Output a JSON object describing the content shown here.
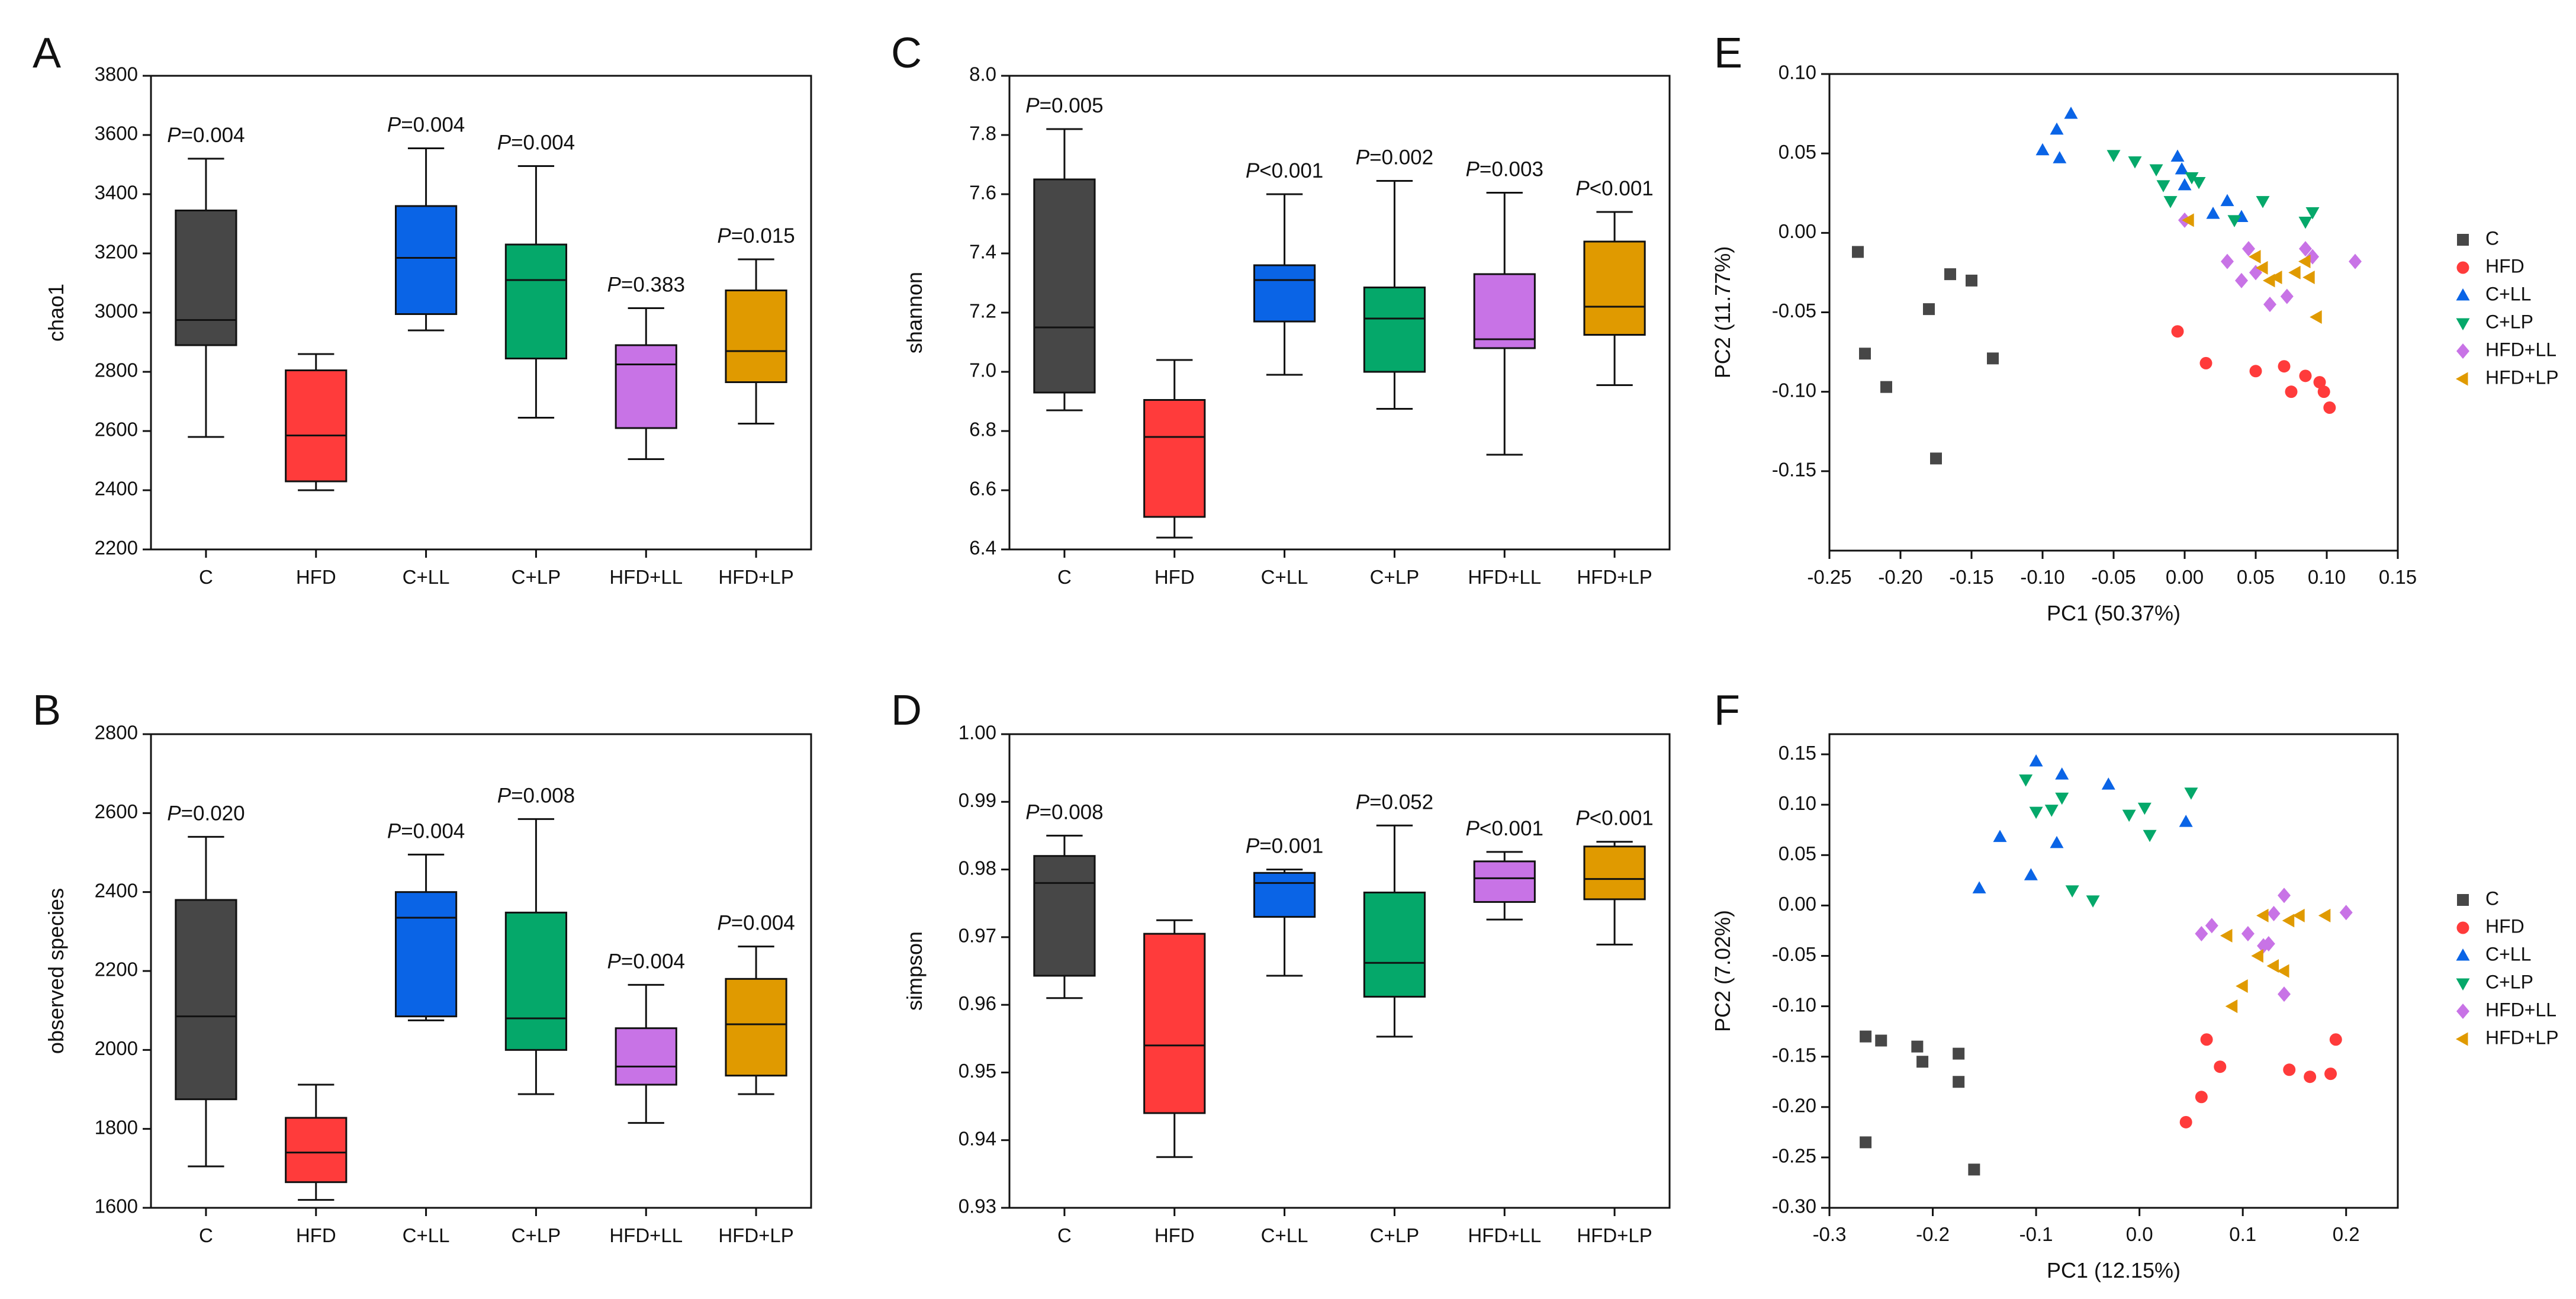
{
  "colors": {
    "C": "#474747",
    "HFD": "#ff3b3b",
    "C+LL": "#0a64e6",
    "C+LP": "#05a86a",
    "HFD+LL": "#c873e6",
    "HFD+LP": "#e09a00"
  },
  "chart_data": [
    {
      "panel": "A",
      "type": "box",
      "ylabel": "chao1",
      "ylim": [
        2200,
        3800
      ],
      "yticks": [
        "2200",
        "2400",
        "2600",
        "2800",
        "3000",
        "3200",
        "3400",
        "3600",
        "3800"
      ],
      "categories": [
        "C",
        "HFD",
        "C+LL",
        "C+LP",
        "HFD+LL",
        "HFD+LP"
      ],
      "boxes": [
        {
          "group": "C",
          "min": 2580,
          "q1": 2890,
          "median": 2975,
          "q3": 3345,
          "max": 3520,
          "pprefix": "P",
          "ptext": "=0.004"
        },
        {
          "group": "HFD",
          "min": 2400,
          "q1": 2430,
          "median": 2585,
          "q3": 2805,
          "max": 2860,
          "pprefix": "",
          "ptext": ""
        },
        {
          "group": "C+LL",
          "min": 2940,
          "q1": 2995,
          "median": 3185,
          "q3": 3360,
          "max": 3555,
          "pprefix": "P",
          "ptext": "=0.004"
        },
        {
          "group": "C+LP",
          "min": 2645,
          "q1": 2845,
          "median": 3110,
          "q3": 3230,
          "max": 3495,
          "pprefix": "P",
          "ptext": "=0.004"
        },
        {
          "group": "HFD+LL",
          "min": 2505,
          "q1": 2610,
          "median": 2825,
          "q3": 2890,
          "max": 3015,
          "pprefix": "P",
          "ptext": "=0.383"
        },
        {
          "group": "HFD+LP",
          "min": 2625,
          "q1": 2765,
          "median": 2870,
          "q3": 3075,
          "max": 3180,
          "pprefix": "P",
          "ptext": "=0.015"
        }
      ]
    },
    {
      "panel": "B",
      "type": "box",
      "ylabel": "observed species",
      "ylim": [
        1600,
        2800
      ],
      "yticks": [
        "1600",
        "1800",
        "2000",
        "2200",
        "2400",
        "2600",
        "2800"
      ],
      "categories": [
        "C",
        "HFD",
        "C+LL",
        "C+LP",
        "HFD+LL",
        "HFD+LP"
      ],
      "boxes": [
        {
          "group": "C",
          "min": 1705,
          "q1": 1875,
          "median": 2085,
          "q3": 2380,
          "max": 2540,
          "pprefix": "P",
          "ptext": "=0.020"
        },
        {
          "group": "HFD",
          "min": 1620,
          "q1": 1665,
          "median": 1740,
          "q3": 1828,
          "max": 1912,
          "pprefix": "",
          "ptext": ""
        },
        {
          "group": "C+LL",
          "min": 2075,
          "q1": 2085,
          "median": 2335,
          "q3": 2400,
          "max": 2495,
          "pprefix": "P",
          "ptext": "=0.004"
        },
        {
          "group": "C+LP",
          "min": 1888,
          "q1": 2000,
          "median": 2080,
          "q3": 2348,
          "max": 2585,
          "pprefix": "P",
          "ptext": "=0.008"
        },
        {
          "group": "HFD+LL",
          "min": 1815,
          "q1": 1912,
          "median": 1958,
          "q3": 2055,
          "max": 2165,
          "pprefix": "P",
          "ptext": "=0.004"
        },
        {
          "group": "HFD+LP",
          "min": 1888,
          "q1": 1935,
          "median": 2065,
          "q3": 2180,
          "max": 2262,
          "pprefix": "P",
          "ptext": "=0.004"
        }
      ]
    },
    {
      "panel": "C",
      "type": "box",
      "ylabel": "shannon",
      "ylim": [
        6.4,
        8.0
      ],
      "yticks": [
        "6.4",
        "6.6",
        "6.8",
        "7.0",
        "7.2",
        "7.4",
        "7.6",
        "7.8",
        "8.0"
      ],
      "categories": [
        "C",
        "HFD",
        "C+LL",
        "C+LP",
        "HFD+LL",
        "HFD+LP"
      ],
      "boxes": [
        {
          "group": "C",
          "min": 6.87,
          "q1": 6.93,
          "median": 7.15,
          "q3": 7.65,
          "max": 7.82,
          "pprefix": "P",
          "ptext": "=0.005"
        },
        {
          "group": "HFD",
          "min": 6.44,
          "q1": 6.51,
          "median": 6.78,
          "q3": 6.905,
          "max": 7.04,
          "pprefix": "",
          "ptext": ""
        },
        {
          "group": "C+LL",
          "min": 6.99,
          "q1": 7.17,
          "median": 7.31,
          "q3": 7.36,
          "max": 7.6,
          "pprefix": "P",
          "ptext": "<0.001"
        },
        {
          "group": "C+LP",
          "min": 6.875,
          "q1": 7.0,
          "median": 7.18,
          "q3": 7.285,
          "max": 7.645,
          "pprefix": "P",
          "ptext": "=0.002"
        },
        {
          "group": "HFD+LL",
          "min": 6.72,
          "q1": 7.08,
          "median": 7.11,
          "q3": 7.33,
          "max": 7.605,
          "pprefix": "P",
          "ptext": "=0.003"
        },
        {
          "group": "HFD+LP",
          "min": 6.955,
          "q1": 7.125,
          "median": 7.22,
          "q3": 7.44,
          "max": 7.54,
          "pprefix": "P",
          "ptext": "<0.001"
        }
      ]
    },
    {
      "panel": "D",
      "type": "box",
      "ylabel": "simpson",
      "ylim": [
        0.93,
        1.0
      ],
      "yticks": [
        "0.93",
        "0.94",
        "0.95",
        "0.96",
        "0.97",
        "0.98",
        "0.99",
        "1.00"
      ],
      "categories": [
        "C",
        "HFD",
        "C+LL",
        "C+LP",
        "HFD+LL",
        "HFD+LP"
      ],
      "boxes": [
        {
          "group": "C",
          "min": 0.961,
          "q1": 0.9643,
          "median": 0.978,
          "q3": 0.982,
          "max": 0.985,
          "pprefix": "P",
          "ptext": "=0.008"
        },
        {
          "group": "HFD",
          "min": 0.9375,
          "q1": 0.944,
          "median": 0.954,
          "q3": 0.9705,
          "max": 0.9725,
          "pprefix": "",
          "ptext": ""
        },
        {
          "group": "C+LL",
          "min": 0.9643,
          "q1": 0.973,
          "median": 0.978,
          "q3": 0.9795,
          "max": 0.98,
          "pprefix": "P",
          "ptext": "=0.001"
        },
        {
          "group": "C+LP",
          "min": 0.9553,
          "q1": 0.9612,
          "median": 0.9662,
          "q3": 0.9766,
          "max": 0.9865,
          "pprefix": "P",
          "ptext": "=0.052"
        },
        {
          "group": "HFD+LL",
          "min": 0.9726,
          "q1": 0.9752,
          "median": 0.9787,
          "q3": 0.9812,
          "max": 0.9826,
          "pprefix": "P",
          "ptext": "<0.001"
        },
        {
          "group": "HFD+LP",
          "min": 0.9689,
          "q1": 0.9756,
          "median": 0.9786,
          "q3": 0.9834,
          "max": 0.9841,
          "pprefix": "P",
          "ptext": "<0.001"
        }
      ]
    },
    {
      "panel": "E",
      "type": "scatter",
      "xlabel": "PC1 (50.37%)",
      "ylabel": "PC2 (11.77%)",
      "xlim": [
        -0.25,
        0.15
      ],
      "ylim": [
        -0.2,
        0.1
      ],
      "xticks": [
        "-0.25",
        "-0.20",
        "-0.15",
        "-0.10",
        "-0.05",
        "0.00",
        "0.05",
        "0.10",
        "0.15"
      ],
      "yticks": [
        "-0.15",
        "-0.10",
        "-0.05",
        "0.00",
        "0.05",
        "0.10"
      ],
      "legend": "right",
      "series": [
        {
          "name": "C",
          "marker": "square",
          "points": [
            [
              -0.23,
              -0.012
            ],
            [
              -0.225,
              -0.076
            ],
            [
              -0.21,
              -0.097
            ],
            [
              -0.18,
              -0.048
            ],
            [
              -0.175,
              -0.142
            ],
            [
              -0.165,
              -0.026
            ],
            [
              -0.15,
              -0.03
            ],
            [
              -0.135,
              -0.079
            ]
          ]
        },
        {
          "name": "HFD",
          "marker": "circle",
          "points": [
            [
              -0.005,
              -0.062
            ],
            [
              0.015,
              -0.082
            ],
            [
              0.05,
              -0.087
            ],
            [
              0.07,
              -0.084
            ],
            [
              0.075,
              -0.1
            ],
            [
              0.085,
              -0.09
            ],
            [
              0.095,
              -0.094
            ],
            [
              0.098,
              -0.1
            ],
            [
              0.102,
              -0.11
            ]
          ]
        },
        {
          "name": "C+LL",
          "marker": "triangle-up",
          "points": [
            [
              -0.1,
              0.052
            ],
            [
              -0.09,
              0.065
            ],
            [
              -0.088,
              0.047
            ],
            [
              -0.08,
              0.075
            ],
            [
              -0.005,
              0.048
            ],
            [
              -0.002,
              0.04
            ],
            [
              0.0,
              0.03
            ],
            [
              0.02,
              0.012
            ],
            [
              0.03,
              0.02
            ],
            [
              0.04,
              0.01
            ]
          ]
        },
        {
          "name": "C+LP",
          "marker": "triangle-down",
          "points": [
            [
              -0.05,
              0.049
            ],
            [
              -0.035,
              0.045
            ],
            [
              -0.02,
              0.04
            ],
            [
              -0.015,
              0.03
            ],
            [
              -0.01,
              0.02
            ],
            [
              0.005,
              0.035
            ],
            [
              0.01,
              0.032
            ],
            [
              0.035,
              0.008
            ],
            [
              0.055,
              0.02
            ],
            [
              0.09,
              0.013
            ],
            [
              0.085,
              0.007
            ]
          ]
        },
        {
          "name": "HFD+LL",
          "marker": "diamond",
          "points": [
            [
              0.0,
              0.008
            ],
            [
              0.03,
              -0.018
            ],
            [
              0.045,
              -0.01
            ],
            [
              0.04,
              -0.03
            ],
            [
              0.05,
              -0.025
            ],
            [
              0.06,
              -0.045
            ],
            [
              0.072,
              -0.04
            ],
            [
              0.085,
              -0.01
            ],
            [
              0.09,
              -0.015
            ],
            [
              0.12,
              -0.018
            ]
          ]
        },
        {
          "name": "HFD+LP",
          "marker": "triangle-left",
          "points": [
            [
              0.003,
              0.008
            ],
            [
              0.05,
              -0.015
            ],
            [
              0.055,
              -0.022
            ],
            [
              0.06,
              -0.03
            ],
            [
              0.065,
              -0.028
            ],
            [
              0.078,
              -0.025
            ],
            [
              0.085,
              -0.018
            ],
            [
              0.088,
              -0.028
            ],
            [
              0.093,
              -0.053
            ]
          ]
        }
      ]
    },
    {
      "panel": "F",
      "type": "scatter",
      "xlabel": "PC1 (12.15%)",
      "ylabel": "PC2 (7.02%)",
      "xlim": [
        -0.3,
        0.25
      ],
      "ylim": [
        -0.3,
        0.17
      ],
      "xticks": [
        "-0.3",
        "-0.2",
        "-0.1",
        "0.0",
        "0.1",
        "0.2"
      ],
      "yticks": [
        "-0.30",
        "-0.25",
        "-0.20",
        "-0.15",
        "-0.10",
        "-0.05",
        "0.00",
        "0.05",
        "0.10",
        "0.15"
      ],
      "legend": "right",
      "series": [
        {
          "name": "C",
          "marker": "square",
          "points": [
            [
              -0.265,
              -0.13
            ],
            [
              -0.265,
              -0.235
            ],
            [
              -0.25,
              -0.134
            ],
            [
              -0.215,
              -0.14
            ],
            [
              -0.21,
              -0.155
            ],
            [
              -0.175,
              -0.147
            ],
            [
              -0.175,
              -0.175
            ],
            [
              -0.16,
              -0.262
            ]
          ]
        },
        {
          "name": "HFD",
          "marker": "circle",
          "points": [
            [
              0.045,
              -0.215
            ],
            [
              0.06,
              -0.19
            ],
            [
              0.065,
              -0.133
            ],
            [
              0.078,
              -0.16
            ],
            [
              0.145,
              -0.163
            ],
            [
              0.165,
              -0.17
            ],
            [
              0.185,
              -0.167
            ],
            [
              0.19,
              -0.133
            ]
          ]
        },
        {
          "name": "C+LL",
          "marker": "triangle-up",
          "points": [
            [
              -0.155,
              0.017
            ],
            [
              -0.135,
              0.068
            ],
            [
              -0.105,
              0.03
            ],
            [
              -0.1,
              0.143
            ],
            [
              -0.08,
              0.062
            ],
            [
              -0.075,
              0.13
            ],
            [
              -0.03,
              0.12
            ],
            [
              0.045,
              0.083
            ]
          ]
        },
        {
          "name": "C+LP",
          "marker": "triangle-down",
          "points": [
            [
              -0.11,
              0.125
            ],
            [
              -0.1,
              0.093
            ],
            [
              -0.085,
              0.095
            ],
            [
              -0.075,
              0.107
            ],
            [
              -0.065,
              0.015
            ],
            [
              -0.045,
              0.005
            ],
            [
              -0.01,
              0.09
            ],
            [
              0.005,
              0.097
            ],
            [
              0.01,
              0.07
            ],
            [
              0.05,
              0.112
            ]
          ]
        },
        {
          "name": "HFD+LL",
          "marker": "diamond",
          "points": [
            [
              0.06,
              -0.028
            ],
            [
              0.07,
              -0.02
            ],
            [
              0.105,
              -0.028
            ],
            [
              0.12,
              -0.04
            ],
            [
              0.125,
              -0.038
            ],
            [
              0.13,
              -0.008
            ],
            [
              0.14,
              0.01
            ],
            [
              0.14,
              -0.088
            ],
            [
              0.2,
              -0.007
            ]
          ]
        },
        {
          "name": "HFD+LP",
          "marker": "triangle-left",
          "points": [
            [
              0.085,
              -0.03
            ],
            [
              0.09,
              -0.1
            ],
            [
              0.1,
              -0.08
            ],
            [
              0.115,
              -0.05
            ],
            [
              0.12,
              -0.01
            ],
            [
              0.13,
              -0.06
            ],
            [
              0.14,
              -0.065
            ],
            [
              0.145,
              -0.015
            ],
            [
              0.155,
              -0.01
            ],
            [
              0.18,
              -0.01
            ]
          ]
        }
      ]
    }
  ]
}
